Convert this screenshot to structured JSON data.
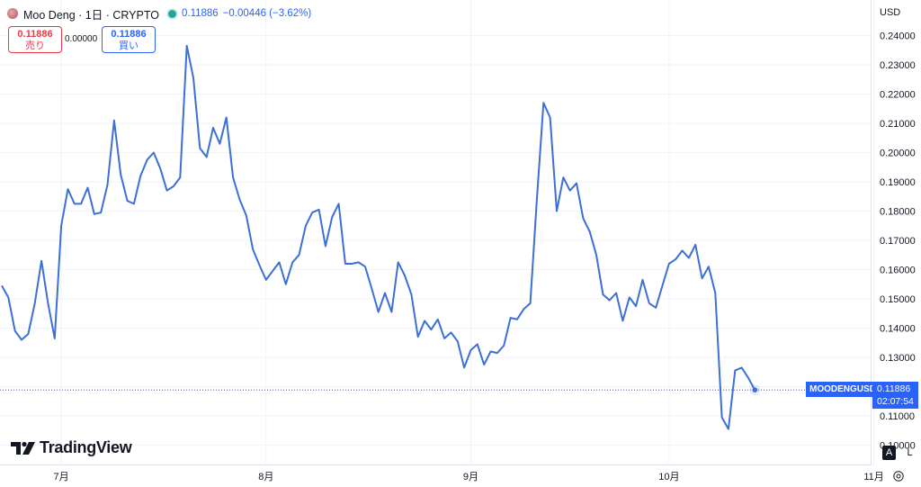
{
  "header": {
    "symbol_title": "Moo Deng · 1日 · CRYPTO",
    "last_price": "0.11886",
    "change": "−0.00446 (−3.62%)"
  },
  "trade": {
    "sell_price": "0.11886",
    "sell_label": "売り",
    "spread": "0.00000",
    "buy_price": "0.11886",
    "buy_label": "買い"
  },
  "brand": {
    "logo_text": "TradingView"
  },
  "price_axis": {
    "currency": "USD",
    "ticks": [
      "0.24000",
      "0.23000",
      "0.22000",
      "0.21000",
      "0.20000",
      "0.19000",
      "0.18000",
      "0.17000",
      "0.16000",
      "0.15000",
      "0.14000",
      "0.13000",
      "0.12000",
      "0.11000",
      "0.10000"
    ],
    "auto_label": "A",
    "log_label": "L"
  },
  "last_marker": {
    "ticker": "MOODENGUSD",
    "price": "0.11886",
    "countdown": "02:07:54"
  },
  "colors": {
    "line": "#3c6fd8",
    "accent": "#2962ff",
    "up": "#26a69a",
    "sell": "#f23645"
  },
  "chart_data": {
    "type": "line",
    "series": [
      {
        "name": "MOODENGUSD",
        "x": [
          "06-22",
          "06-23",
          "06-24",
          "06-25",
          "06-26",
          "06-27",
          "06-28",
          "06-29",
          "06-30",
          "07-01",
          "07-02",
          "07-03",
          "07-04",
          "07-05",
          "07-06",
          "07-07",
          "07-08",
          "07-09",
          "07-10",
          "07-11",
          "07-12",
          "07-13",
          "07-14",
          "07-15",
          "07-16",
          "07-17",
          "07-18",
          "07-19",
          "07-20",
          "07-21",
          "07-22",
          "07-23",
          "07-24",
          "07-25",
          "07-26",
          "07-27",
          "07-28",
          "07-29",
          "07-30",
          "07-31",
          "08-01",
          "08-02",
          "08-03",
          "08-04",
          "08-05",
          "08-06",
          "08-07",
          "08-08",
          "08-09",
          "08-10",
          "08-11",
          "08-12",
          "08-13",
          "08-14",
          "08-15",
          "08-16",
          "08-17",
          "08-18",
          "08-19",
          "08-20",
          "08-21",
          "08-22",
          "08-23",
          "08-24",
          "08-25",
          "08-26",
          "08-27",
          "08-28",
          "08-29",
          "08-30",
          "08-31",
          "09-01",
          "09-02",
          "09-03",
          "09-04",
          "09-05",
          "09-06",
          "09-07",
          "09-08",
          "09-09",
          "09-10",
          "09-11",
          "09-12",
          "09-13",
          "09-14",
          "09-15",
          "09-16",
          "09-17",
          "09-18",
          "09-19",
          "09-20",
          "09-21",
          "09-22",
          "09-23",
          "09-24",
          "09-25",
          "09-26",
          "09-27",
          "09-28",
          "09-29",
          "09-30",
          "10-01",
          "10-02",
          "10-03",
          "10-04",
          "10-05",
          "10-06",
          "10-07",
          "10-08",
          "10-09",
          "10-10",
          "10-11",
          "10-12",
          "10-13",
          "10-14"
        ],
        "values": [
          0.1545,
          0.1505,
          0.139,
          0.136,
          0.138,
          0.1485,
          0.163,
          0.1485,
          0.1365,
          0.175,
          0.1875,
          0.1825,
          0.1825,
          0.188,
          0.179,
          0.1795,
          0.189,
          0.211,
          0.1925,
          0.1835,
          0.1825,
          0.192,
          0.1975,
          0.2,
          0.1945,
          0.187,
          0.1885,
          0.1915,
          0.2365,
          0.2255,
          0.2015,
          0.1985,
          0.2085,
          0.203,
          0.212,
          0.1915,
          0.184,
          0.1785,
          0.167,
          0.1615,
          0.1565,
          0.1595,
          0.1625,
          0.155,
          0.1625,
          0.165,
          0.175,
          0.1795,
          0.1805,
          0.168,
          0.178,
          0.1825,
          0.162,
          0.162,
          0.1625,
          0.161,
          0.1535,
          0.1455,
          0.152,
          0.1455,
          0.1625,
          0.158,
          0.1515,
          0.137,
          0.1425,
          0.1395,
          0.143,
          0.1365,
          0.1385,
          0.1355,
          0.1265,
          0.1325,
          0.1345,
          0.1275,
          0.132,
          0.1315,
          0.134,
          0.1435,
          0.143,
          0.1465,
          0.1485,
          0.184,
          0.217,
          0.212,
          0.18,
          0.1915,
          0.187,
          0.1895,
          0.1775,
          0.173,
          0.165,
          0.1515,
          0.1495,
          0.152,
          0.1425,
          0.1505,
          0.1475,
          0.1565,
          0.1485,
          0.147,
          0.1545,
          0.162,
          0.1635,
          0.1665,
          0.164,
          0.1685,
          0.157,
          0.161,
          0.152,
          0.1095,
          0.1055,
          0.1255,
          0.1265,
          0.123,
          0.11886
        ]
      }
    ],
    "x_tick_labels": [
      "7月",
      "8月",
      "9月",
      "10月",
      "11月"
    ],
    "ylim": [
      0.1,
      0.245
    ],
    "y_axis_side": "right",
    "grid": true,
    "current_price_line": 0.11886
  }
}
